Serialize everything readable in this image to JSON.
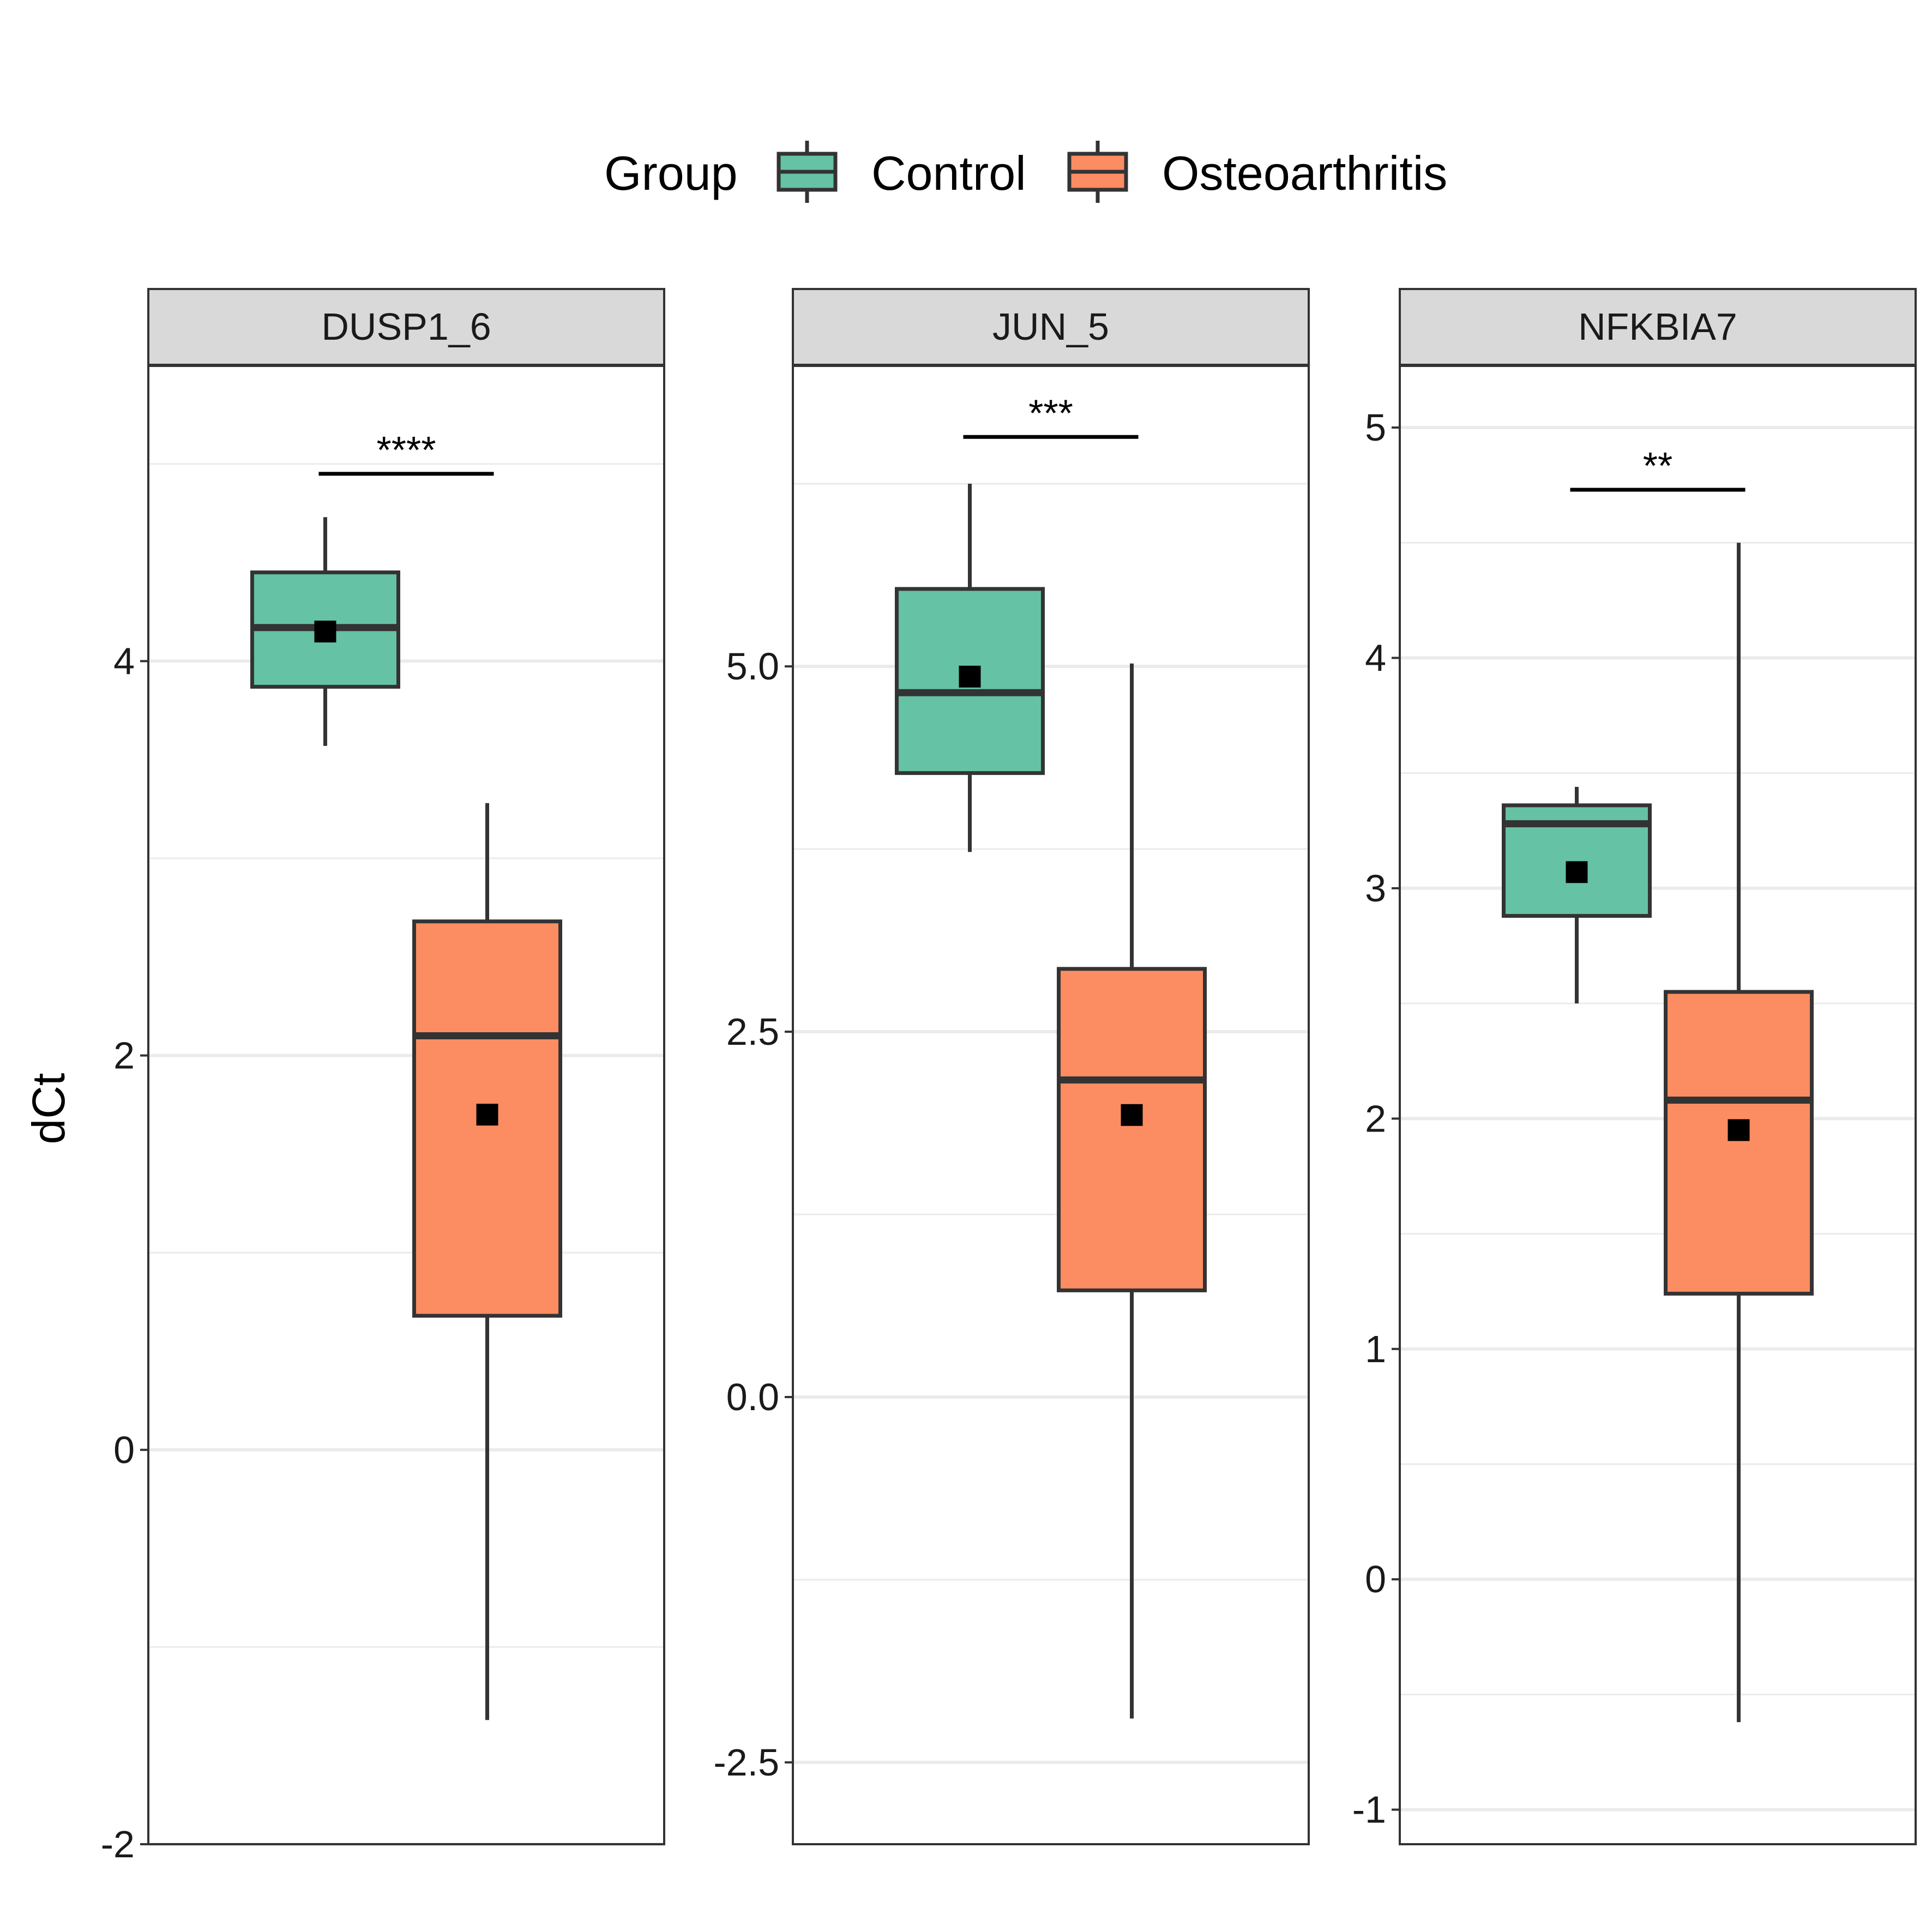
{
  "chart_data": {
    "type": "box",
    "ylabel": "dCt",
    "legend": {
      "title": "Group",
      "placement": "top",
      "entries": [
        {
          "name": "Control",
          "color": "#66c2a5"
        },
        {
          "name": "Osteoarthritis",
          "color": "#fc8d62"
        }
      ]
    },
    "grid": true,
    "panels": [
      {
        "title": "DUSP1_6",
        "ylim": [
          -2.0,
          5.5
        ],
        "yticks": [
          -2,
          0,
          2,
          4
        ],
        "ytick_labels": [
          "-2",
          "0",
          "2",
          "4"
        ],
        "significance": {
          "label": "****",
          "y": 4.95
        },
        "groups": [
          {
            "name": "Control",
            "whisker_low": 3.57,
            "q1": 3.87,
            "median": 4.17,
            "q3": 4.45,
            "whisker_high": 4.73,
            "mean": 4.15
          },
          {
            "name": "Osteoarthritis",
            "whisker_low": -1.37,
            "q1": 0.68,
            "median": 2.1,
            "q3": 2.68,
            "whisker_high": 3.28,
            "mean": 1.7
          }
        ]
      },
      {
        "title": "JUN_5",
        "ylim": [
          -3.06,
          7.06
        ],
        "yticks": [
          -2.5,
          0.0,
          2.5,
          5.0
        ],
        "ytick_labels": [
          "-2.5",
          "0.0",
          "2.5",
          "5.0"
        ],
        "significance": {
          "label": "***",
          "y": 6.57
        },
        "groups": [
          {
            "name": "Control",
            "whisker_low": 3.73,
            "q1": 4.27,
            "median": 4.82,
            "q3": 5.53,
            "whisker_high": 6.25,
            "mean": 4.93
          },
          {
            "name": "Osteoarthritis",
            "whisker_low": -2.2,
            "q1": 0.73,
            "median": 2.17,
            "q3": 2.93,
            "whisker_high": 5.02,
            "mean": 1.93
          }
        ]
      },
      {
        "title": "NFKBIA7",
        "ylim": [
          -1.15,
          5.27
        ],
        "yticks": [
          -1,
          0,
          1,
          2,
          3,
          4,
          5
        ],
        "ytick_labels": [
          "-1",
          "0",
          "1",
          "2",
          "3",
          "4",
          "5"
        ],
        "significance": {
          "label": "**",
          "y": 4.73
        },
        "groups": [
          {
            "name": "Control",
            "whisker_low": 2.5,
            "q1": 2.88,
            "median": 3.28,
            "q3": 3.36,
            "whisker_high": 3.44,
            "mean": 3.07
          },
          {
            "name": "Osteoarthritis",
            "whisker_low": -0.62,
            "q1": 1.24,
            "median": 2.08,
            "q3": 2.55,
            "whisker_high": 4.5,
            "mean": 1.95
          }
        ]
      }
    ]
  }
}
